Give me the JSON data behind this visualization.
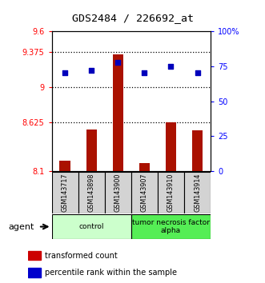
{
  "title": "GDS2484 / 226692_at",
  "samples": [
    "GSM143717",
    "GSM143898",
    "GSM143900",
    "GSM143907",
    "GSM143910",
    "GSM143914"
  ],
  "bar_values": [
    8.21,
    8.55,
    9.35,
    8.185,
    8.62,
    8.54
  ],
  "dot_values": [
    70.5,
    72,
    77.5,
    70.5,
    75,
    70.5
  ],
  "bar_color": "#aa1100",
  "dot_color": "#0000bb",
  "ylim_left": [
    8.1,
    9.6
  ],
  "ylim_right": [
    0,
    100
  ],
  "yticks_left": [
    8.1,
    8.625,
    9.0,
    9.375,
    9.6
  ],
  "yticks_left_labels": [
    "8.1",
    "8.625",
    "9",
    "9.375",
    "9.6"
  ],
  "yticks_right": [
    0,
    25,
    50,
    75,
    100
  ],
  "yticks_right_labels": [
    "0",
    "25",
    "50",
    "75",
    "100%"
  ],
  "hlines": [
    8.625,
    9.0,
    9.375
  ],
  "groups": [
    {
      "label": "control",
      "indices": [
        0,
        1,
        2
      ],
      "color": "#ccffcc"
    },
    {
      "label": "tumor necrosis factor\nalpha",
      "indices": [
        3,
        4,
        5
      ],
      "color": "#55ee55"
    }
  ],
  "agent_label": "agent",
  "legend": [
    {
      "label": "transformed count",
      "color": "#cc0000"
    },
    {
      "label": "percentile rank within the sample",
      "color": "#0000cc"
    }
  ]
}
